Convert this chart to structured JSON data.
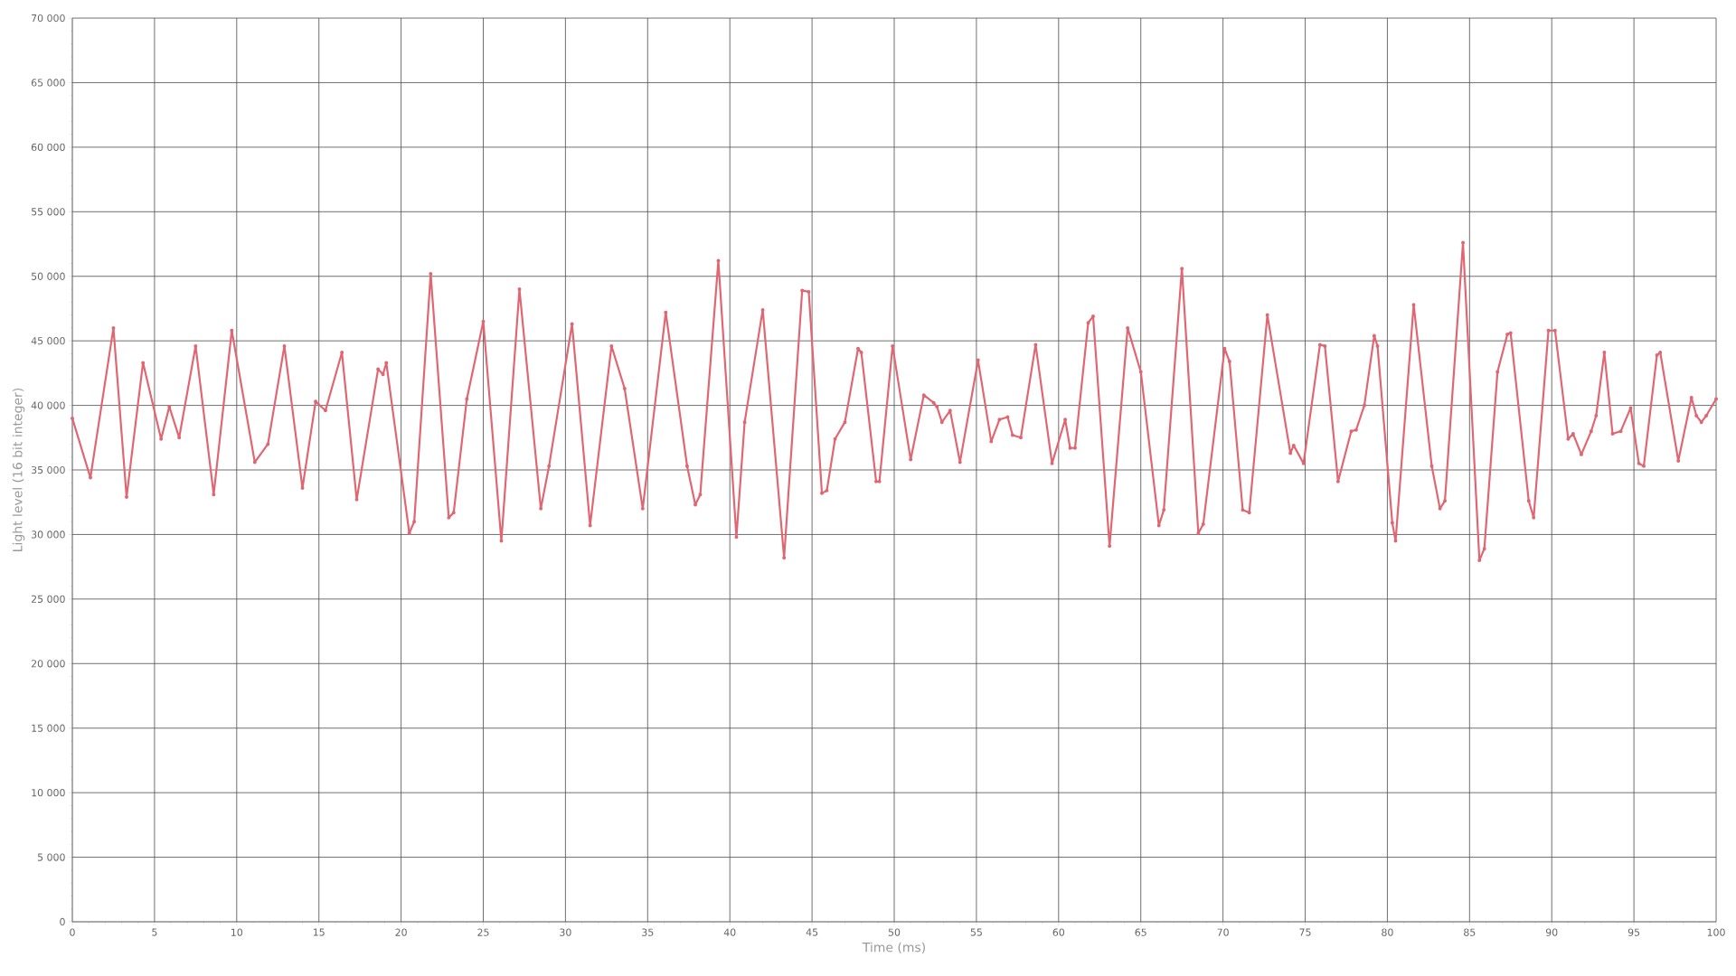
{
  "chart_data": {
    "type": "line",
    "xlabel": "Time (ms)",
    "ylabel": "Light level (16 bit integer)",
    "xlim": [
      0,
      100
    ],
    "ylim": [
      0,
      70000
    ],
    "xticks": [
      0,
      5,
      10,
      15,
      20,
      25,
      30,
      35,
      40,
      45,
      50,
      55,
      60,
      65,
      70,
      75,
      80,
      85,
      90,
      95,
      100
    ],
    "yticks": [
      {
        "value": 0,
        "label": "0"
      },
      {
        "value": 5000,
        "label": "5 000"
      },
      {
        "value": 10000,
        "label": "10 000"
      },
      {
        "value": 15000,
        "label": "15 000"
      },
      {
        "value": 20000,
        "label": "20 000"
      },
      {
        "value": 25000,
        "label": "25 000"
      },
      {
        "value": 30000,
        "label": "30 000"
      },
      {
        "value": 35000,
        "label": "35 000"
      },
      {
        "value": 40000,
        "label": "40 000"
      },
      {
        "value": 45000,
        "label": "45 000"
      },
      {
        "value": 50000,
        "label": "50 000"
      },
      {
        "value": 55000,
        "label": "55 000"
      },
      {
        "value": 60000,
        "label": "60 000"
      },
      {
        "value": 65000,
        "label": "65 000"
      },
      {
        "value": 70000,
        "label": "70 000"
      }
    ],
    "grid": true,
    "marker": "circle",
    "line_style": "solid",
    "series": [
      {
        "color": "#e06672",
        "x": [
          0,
          1.1,
          2.5,
          3.3,
          4.3,
          5.4,
          5.9,
          6.5,
          7.5,
          8.6,
          9.7,
          11.1,
          11.9,
          12.9,
          14.0,
          14.8,
          15.4,
          16.4,
          17.3,
          18.6,
          18.9,
          19.1,
          20.5,
          20.8,
          21.8,
          22.9,
          23.2,
          24.0,
          25.0,
          26.1,
          27.2,
          28.5,
          29.0,
          30.4,
          31.5,
          32.8,
          33.6,
          34.7,
          36.1,
          37.4,
          37.9,
          38.2,
          39.3,
          40.4,
          40.9,
          42.0,
          43.3,
          44.4,
          44.8,
          45.6,
          45.9,
          46.4,
          47.0,
          47.8,
          48.0,
          48.9,
          49.1,
          49.9,
          51.0,
          51.8,
          52.4,
          52.6,
          52.9,
          53.4,
          54.0,
          55.1,
          55.9,
          56.4,
          56.9,
          57.2,
          57.7,
          58.6,
          59.6,
          60.4,
          60.7,
          61.0,
          61.8,
          62.1,
          63.1,
          64.2,
          65.0,
          66.1,
          66.4,
          67.5,
          68.5,
          68.8,
          70.1,
          70.4,
          71.2,
          71.6,
          72.7,
          74.1,
          74.3,
          74.9,
          75.9,
          76.2,
          77.0,
          77.8,
          78.1,
          78.6,
          79.2,
          79.4,
          80.3,
          80.5,
          81.6,
          82.7,
          83.2,
          83.5,
          84.6,
          85.6,
          85.9,
          86.7,
          87.3,
          87.5,
          88.6,
          88.9,
          89.8,
          90.2,
          91.0,
          91.3,
          91.8,
          92.4,
          92.7,
          93.2,
          93.7,
          94.2,
          94.8,
          95.3,
          95.6,
          96.4,
          96.6,
          97.7,
          98.5,
          98.8,
          99.1,
          99.4,
          100
        ],
        "values": [
          39000,
          34400,
          46000,
          32900,
          43300,
          37400,
          39900,
          37500,
          44600,
          33100,
          45800,
          35600,
          37000,
          44600,
          33600,
          40300,
          39600,
          44100,
          32700,
          42800,
          42400,
          43300,
          30100,
          31000,
          50200,
          31300,
          31700,
          40500,
          46500,
          29500,
          49000,
          32000,
          35300,
          46300,
          30700,
          44600,
          41300,
          32000,
          47200,
          35300,
          32300,
          33100,
          51200,
          29800,
          38700,
          47400,
          28200,
          48900,
          48800,
          33200,
          33400,
          37400,
          38700,
          44400,
          44100,
          34100,
          34100,
          44600,
          35800,
          40800,
          40200,
          39900,
          38700,
          39600,
          35600,
          43500,
          37200,
          38900,
          39100,
          37700,
          37500,
          44700,
          35500,
          38900,
          36700,
          36700,
          46400,
          46900,
          29100,
          46000,
          42600,
          30700,
          31900,
          50600,
          30100,
          30800,
          44400,
          43400,
          31900,
          31700,
          47000,
          36300,
          36900,
          35500,
          44700,
          44600,
          34100,
          38000,
          38100,
          40000,
          45400,
          44600,
          30900,
          29500,
          47800,
          35300,
          32000,
          32600,
          52600,
          28000,
          28900,
          42600,
          45500,
          45600,
          32600,
          31300,
          45800,
          45800,
          37400,
          37800,
          36200,
          38000,
          39200,
          44100,
          37800,
          38000,
          39800,
          35500,
          35300,
          43900,
          44100,
          35700,
          40600,
          39200,
          38700,
          39200,
          40500
        ]
      }
    ]
  }
}
